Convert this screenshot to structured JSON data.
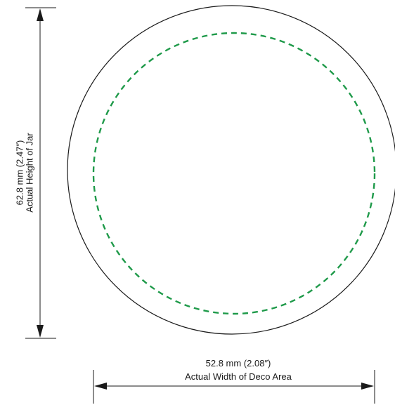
{
  "height_dimension": {
    "value_label": "62.8 mm (2.47″)",
    "caption": "Actual Height of Jar"
  },
  "width_dimension": {
    "value_label": "52.8 mm (2.08″)",
    "caption": "Actual Width of Deco Area"
  },
  "colors": {
    "outline": "#1a1a1a",
    "deco_area_dashed": "#1f9a4a",
    "background": "#ffffff"
  }
}
